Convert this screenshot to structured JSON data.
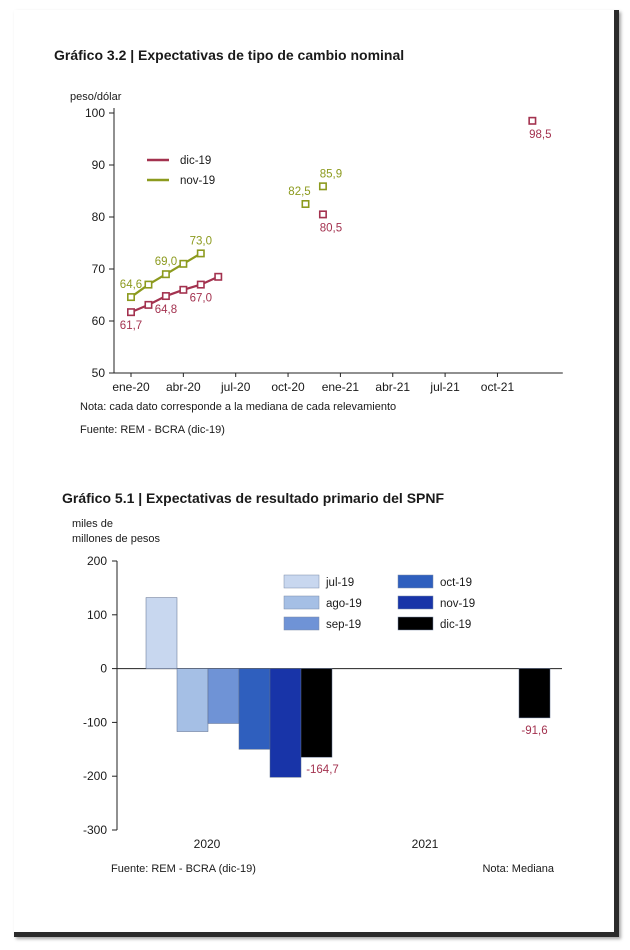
{
  "chart_data": [
    {
      "type": "line",
      "title": "Gráfico 3.2 | Expectativas de tipo de cambio nominal",
      "ylabel": "peso/dólar",
      "ylim": [
        50,
        100
      ],
      "yticks": [
        50,
        60,
        70,
        80,
        90,
        100
      ],
      "xtick_labels": [
        "ene-20",
        "abr-20",
        "jul-20",
        "oct-20",
        "ene-21",
        "abr-21",
        "jul-21",
        "oct-21"
      ],
      "legend_position": "top-left",
      "series": [
        {
          "name": "dic-19",
          "color": "#a3324f",
          "line_x": [
            "2020-01",
            "2020-02",
            "2020-03",
            "2020-04",
            "2020-05",
            "2020-06"
          ],
          "line_y": [
            61.7,
            63.1,
            64.8,
            66.0,
            67.0,
            68.5
          ],
          "extra_x": [
            "2020-12",
            "2021-12"
          ],
          "extra_y": [
            80.5,
            98.5
          ],
          "labels": [
            {
              "text": "61,7",
              "x": "2020-01",
              "y": 61.7
            },
            {
              "text": "64,8",
              "x": "2020-03",
              "y": 64.8
            },
            {
              "text": "67,0",
              "x": "2020-05",
              "y": 67.0
            },
            {
              "text": "80,5",
              "x": "2020-12",
              "y": 80.5
            },
            {
              "text": "98,5",
              "x": "2021-12",
              "y": 98.5
            }
          ]
        },
        {
          "name": "nov-19",
          "color": "#8c9a1e",
          "line_x": [
            "2020-01",
            "2020-02",
            "2020-03",
            "2020-04",
            "2020-05"
          ],
          "line_y": [
            64.6,
            67.0,
            69.0,
            71.0,
            73.0
          ],
          "extra_x": [
            "2020-11",
            "2020-12"
          ],
          "extra_y": [
            82.5,
            85.9
          ],
          "labels": [
            {
              "text": "64,6",
              "x": "2020-01",
              "y": 64.6
            },
            {
              "text": "69,0",
              "x": "2020-03",
              "y": 69.0
            },
            {
              "text": "73,0",
              "x": "2020-05",
              "y": 73.0
            },
            {
              "text": "82,5",
              "x": "2020-11",
              "y": 82.5
            },
            {
              "text": "85,9",
              "x": "2020-12",
              "y": 85.9
            }
          ]
        }
      ]
    },
    {
      "type": "bar",
      "title": "Gráfico 5.1 | Expectativas de resultado primario del SPNF",
      "ylabel_lines": [
        "miles de",
        "millones de pesos"
      ],
      "ylim": [
        -300,
        200
      ],
      "yticks": [
        -300,
        -200,
        -100,
        0,
        100,
        200
      ],
      "categories": [
        "2020",
        "2021"
      ],
      "legend_position": "top-right",
      "series": [
        {
          "name": "jul-19",
          "color": "#c8d7ef",
          "values": [
            132,
            null
          ]
        },
        {
          "name": "ago-19",
          "color": "#a5bfe5",
          "values": [
            -117,
            null
          ]
        },
        {
          "name": "sep-19",
          "color": "#6f93d6",
          "values": [
            -102,
            null
          ]
        },
        {
          "name": "oct-19",
          "color": "#2f5fbe",
          "values": [
            -150,
            null
          ]
        },
        {
          "name": "nov-19",
          "color": "#1834a8",
          "values": [
            -202,
            null
          ]
        },
        {
          "name": "dic-19",
          "color": "#000000",
          "values": [
            -164.7,
            -91.6
          ]
        }
      ],
      "value_labels": [
        {
          "text": "-164,7",
          "category": "2020",
          "series": "dic-19"
        },
        {
          "text": "-91,6",
          "category": "2021",
          "series": "dic-19"
        }
      ]
    }
  ],
  "notes": {
    "chart1_note": "Nota: cada dato corresponde a la mediana de cada relevamiento",
    "chart1_source": "Fuente: REM - BCRA (dic-19)",
    "chart2_source": "Fuente: REM - BCRA (dic-19)",
    "chart2_note": "Nota: Mediana"
  }
}
